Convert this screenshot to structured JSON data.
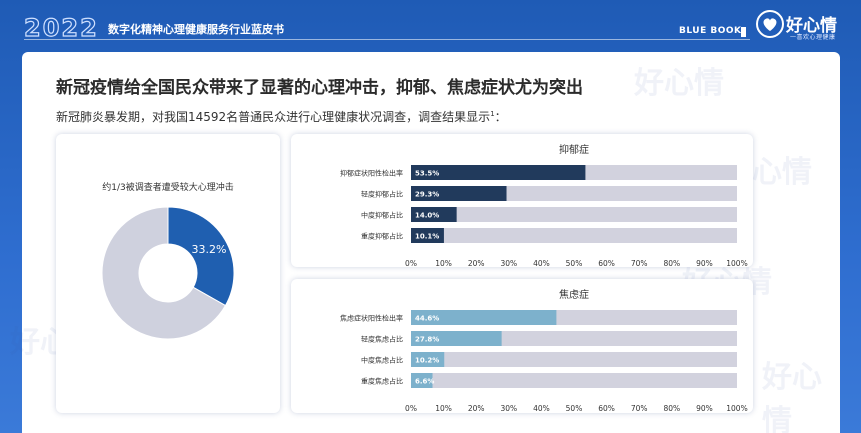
{
  "header": {
    "year": "2022",
    "report_title": "数字化精神心理健康服务行业蓝皮书",
    "blue_book": "BLUE BOOK",
    "brand_name": "好心情",
    "brand_tagline": "一喜欢心理健康"
  },
  "headline": "新冠疫情给全国民众带来了显著的心理冲击，抑郁、焦虑症状尤为突出",
  "subline": "新冠肺炎暴发期，对我国14592名普通民众进行心理健康状况调查，调查结果显示",
  "subline_note": "1",
  "subline_end": "：",
  "watermark_text": "好心情",
  "colors": {
    "pie_highlight": "#1f5fb0",
    "pie_rest": "#cfd1de",
    "depression_bar": "#213a5c",
    "anxiety_bar": "#7db1cc",
    "bar_track": "#d2d2de"
  },
  "chart_data": [
    {
      "type": "pie",
      "title": "约1/3被调查者遭受较大心理冲击",
      "slices": [
        {
          "label": "33.2%",
          "value": 33.2
        },
        {
          "label": "",
          "value": 66.8
        }
      ]
    },
    {
      "type": "bar",
      "orientation": "horizontal",
      "title": "抑郁症",
      "categories": [
        "抑郁症状阳性检出率",
        "轻度抑郁占比",
        "中度抑郁占比",
        "重度抑郁占比"
      ],
      "values": [
        53.5,
        29.3,
        14.0,
        10.1
      ],
      "value_labels": [
        "53.5%",
        "29.3%",
        "14.0%",
        "10.1%"
      ],
      "xlim": [
        0,
        100
      ],
      "xticks": [
        "0%",
        "10%",
        "20%",
        "30%",
        "40%",
        "50%",
        "60%",
        "70%",
        "80%",
        "90%",
        "100%"
      ],
      "grid": false
    },
    {
      "type": "bar",
      "orientation": "horizontal",
      "title": "焦虑症",
      "categories": [
        "焦虑症状阳性检出率",
        "轻度焦虑占比",
        "中度焦虑占比",
        "重度焦虑占比"
      ],
      "values": [
        44.6,
        27.8,
        10.2,
        6.6
      ],
      "value_labels": [
        "44.6%",
        "27.8%",
        "10.2%",
        "6.6%"
      ],
      "xlim": [
        0,
        100
      ],
      "xticks": [
        "0%",
        "10%",
        "20%",
        "30%",
        "40%",
        "50%",
        "60%",
        "70%",
        "80%",
        "90%",
        "100%"
      ],
      "grid": false
    }
  ]
}
